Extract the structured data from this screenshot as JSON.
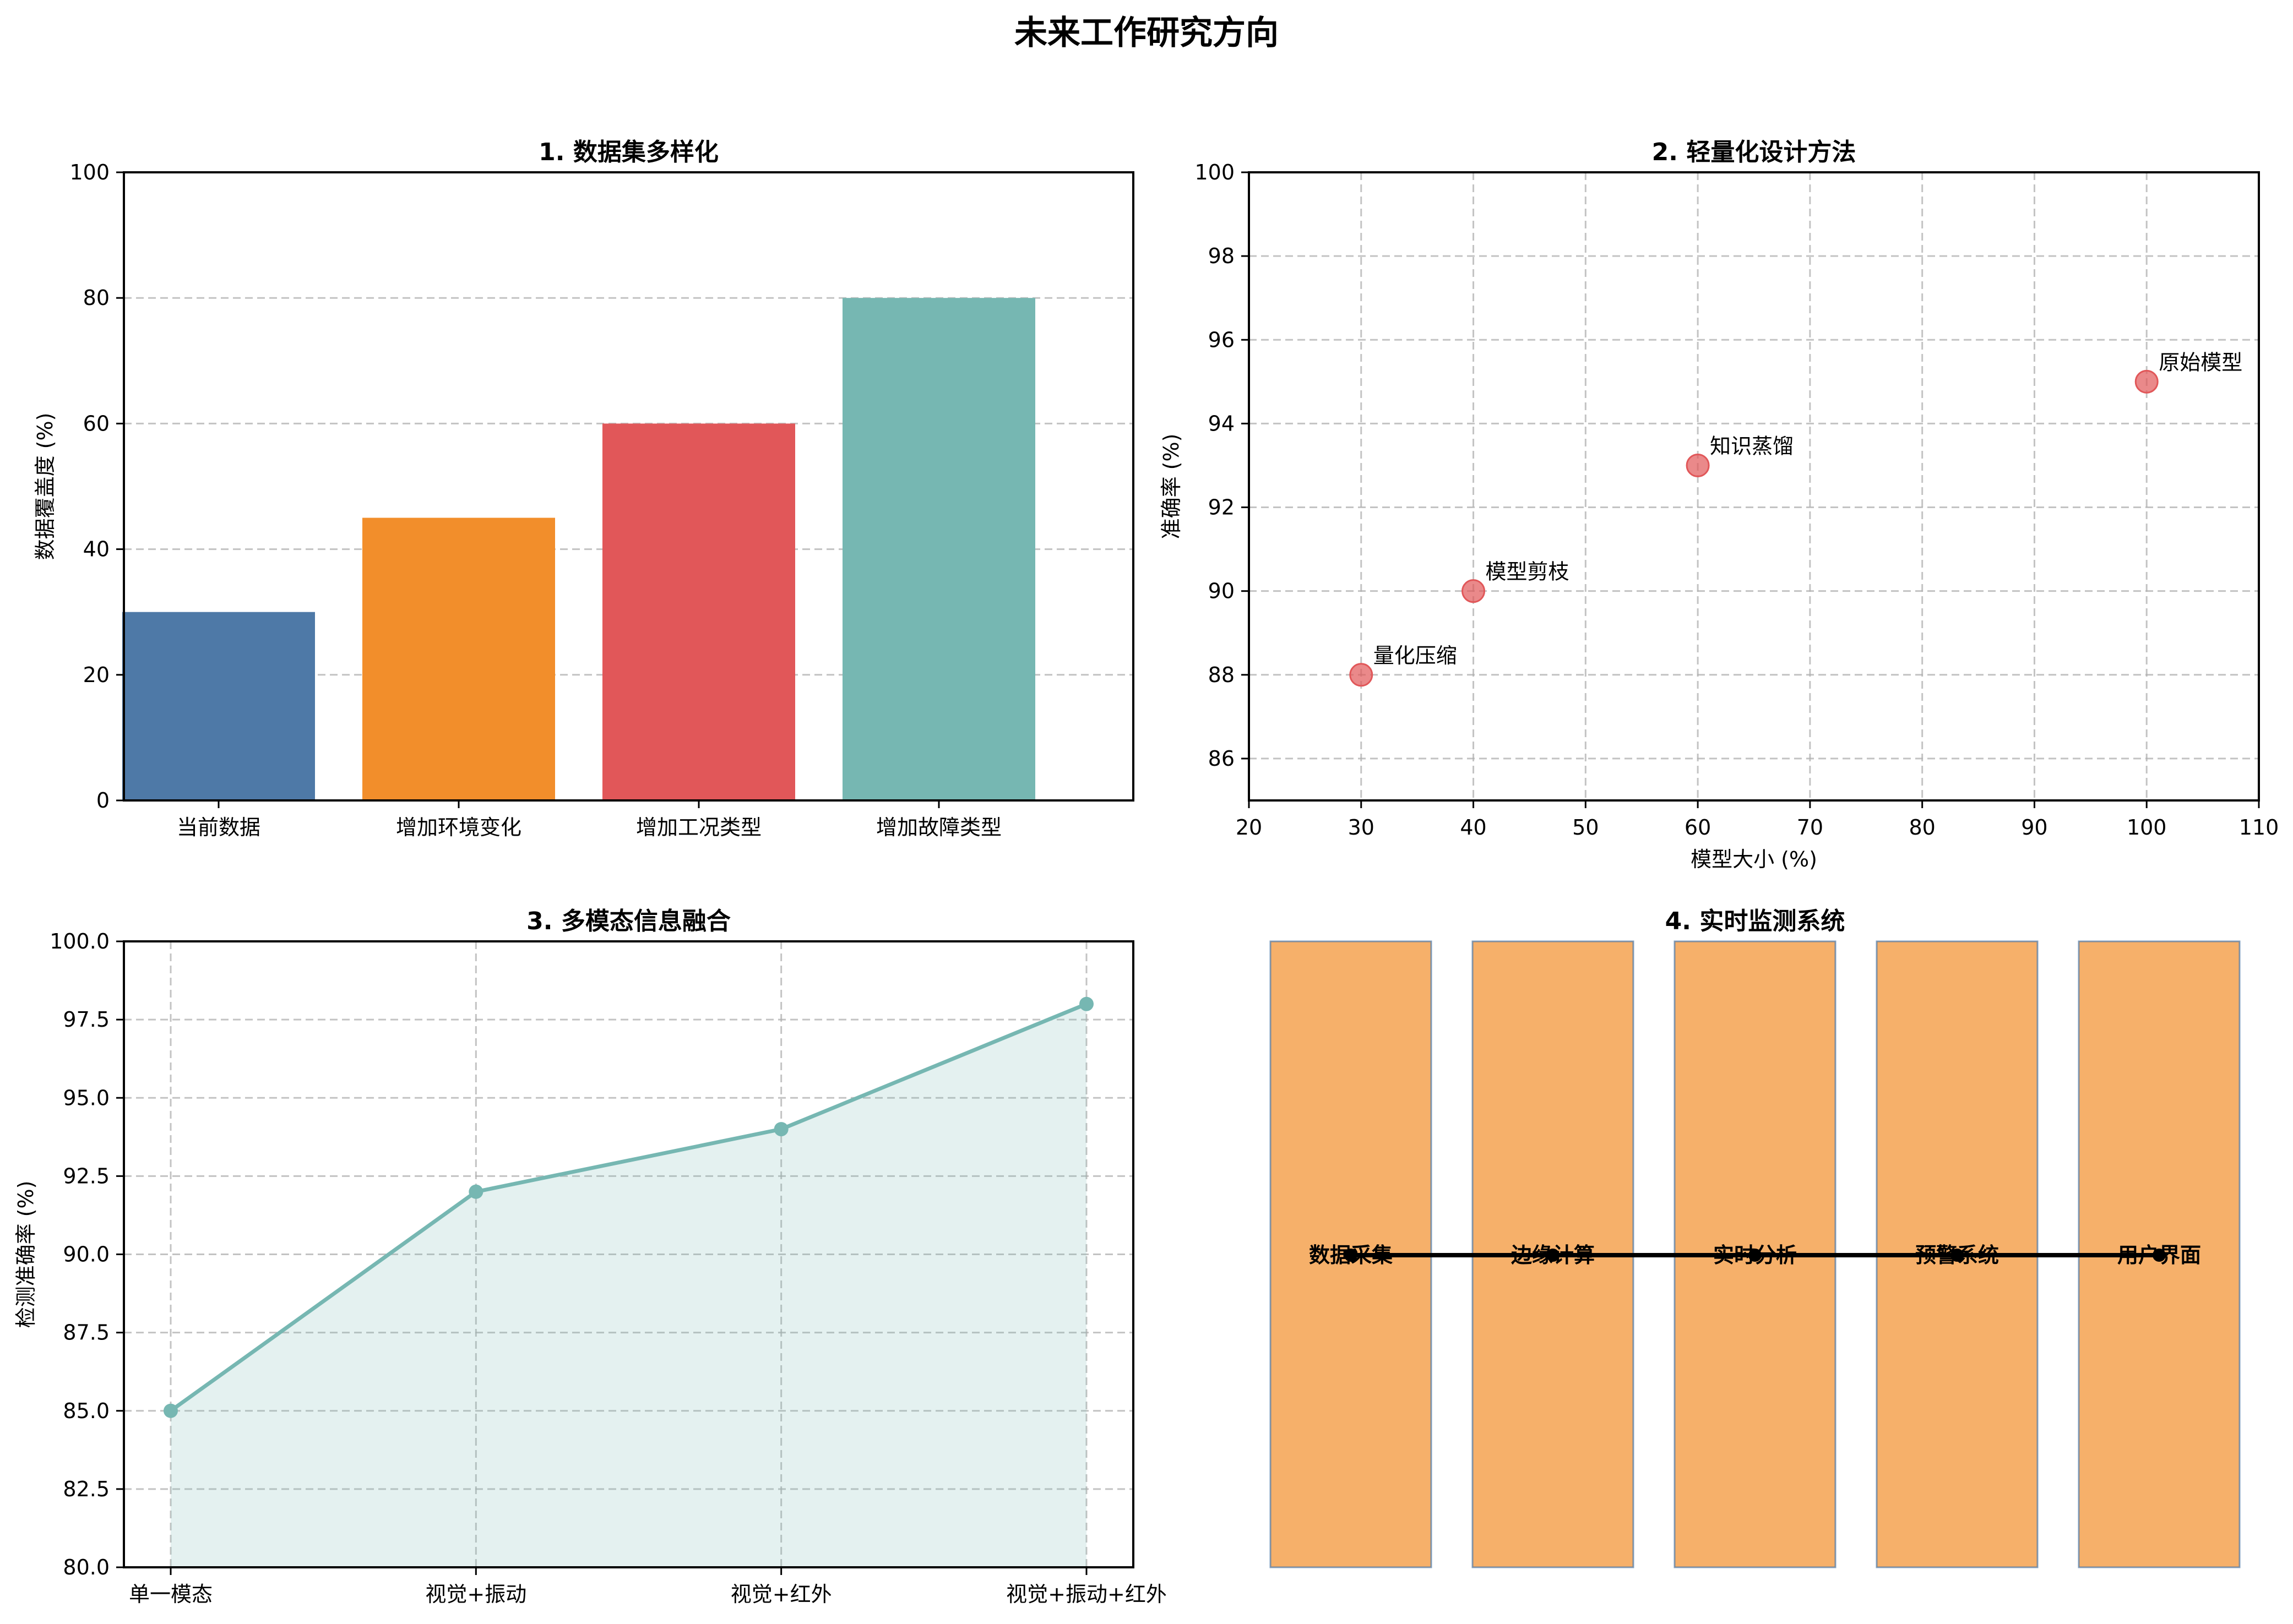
{
  "figure": {
    "title": "未来工作研究方向"
  },
  "chart_data": [
    {
      "id": "panel1",
      "type": "bar",
      "title": "1. 数据集多样化",
      "xlabel": "",
      "ylabel": "数据覆盖度 (%)",
      "categories": [
        "当前数据",
        "增加环境变化",
        "增加工况类型",
        "增加故障类型"
      ],
      "values": [
        30,
        45,
        60,
        80
      ],
      "colors": [
        "#4e79a7",
        "#f28e2b",
        "#e15759",
        "#76b7b2"
      ],
      "ylim": [
        0,
        100
      ],
      "yticks": [
        0,
        20,
        40,
        60,
        80,
        100
      ],
      "grid": "y-dashed",
      "legend": null
    },
    {
      "id": "panel2",
      "type": "scatter",
      "title": "2. 轻量化设计方法",
      "xlabel": "模型大小 (%)",
      "ylabel": "准确率 (%)",
      "points": [
        {
          "label": "原始模型",
          "x": 100,
          "y": 95
        },
        {
          "label": "知识蒸馏",
          "x": 60,
          "y": 93
        },
        {
          "label": "模型剪枝",
          "x": 40,
          "y": 90
        },
        {
          "label": "量化压缩",
          "x": 30,
          "y": 88
        }
      ],
      "marker_color": "#e15759",
      "xlim": [
        20,
        110
      ],
      "ylim": [
        85,
        100
      ],
      "xticks": [
        20,
        30,
        40,
        50,
        60,
        70,
        80,
        90,
        100,
        110
      ],
      "yticks": [
        86,
        88,
        90,
        92,
        94,
        96,
        98,
        100
      ],
      "grid": "both-dashed",
      "legend": null
    },
    {
      "id": "panel3",
      "type": "area",
      "title": "3. 多模态信息融合",
      "xlabel": "",
      "ylabel": "检测准确率 (%)",
      "categories": [
        "单一模态",
        "视觉+振动",
        "视觉+红外",
        "视觉+振动+红外"
      ],
      "values": [
        85,
        92,
        94,
        98
      ],
      "line_color": "#76b7b2",
      "fill_color": "#76b7b2",
      "ylim": [
        80,
        100
      ],
      "yticks": [
        "80.0",
        "82.5",
        "85.0",
        "87.5",
        "90.0",
        "92.5",
        "95.0",
        "97.5",
        "100.0"
      ],
      "grid": "both-dashed",
      "legend": null
    },
    {
      "id": "panel4",
      "type": "diagram",
      "title": "4. 实时监测系统",
      "stages": [
        "数据采集",
        "边缘计算",
        "实时分析",
        "预警系统",
        "用户界面"
      ],
      "box_color": "#f28e2b",
      "box_alpha": 0.7,
      "edge_color": "#4e79a7",
      "connector": "black line with dot markers",
      "axis": "off"
    }
  ]
}
